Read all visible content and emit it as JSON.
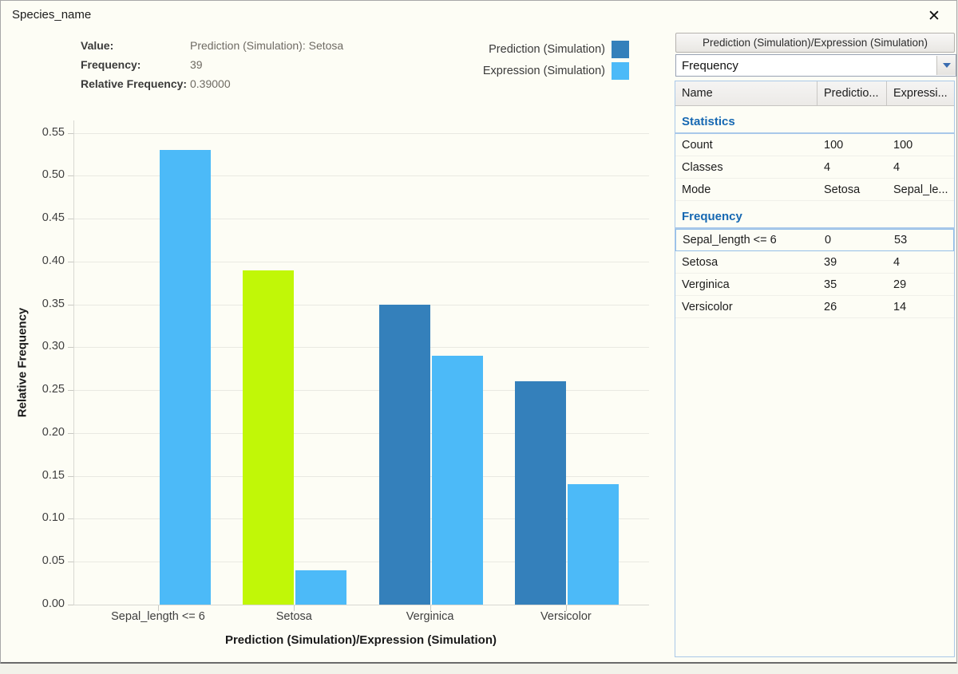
{
  "window": {
    "title": "Species_name",
    "close_glyph": "✕"
  },
  "info": {
    "rows": [
      {
        "label": "Value:",
        "value": "Prediction (Simulation): Setosa"
      },
      {
        "label": "Frequency:",
        "value": "39"
      },
      {
        "label": "Relative Frequency:",
        "value": "0.39000"
      }
    ]
  },
  "legend": {
    "items": [
      {
        "label": "Prediction (Simulation)",
        "color": "#3480BB"
      },
      {
        "label": "Expression (Simulation)",
        "color": "#4CBAF8"
      }
    ]
  },
  "chart_data": {
    "type": "bar",
    "categories": [
      "Sepal_length <= 6",
      "Setosa",
      "Verginica",
      "Versicolor"
    ],
    "series": [
      {
        "name": "Prediction (Simulation)",
        "color": "#3480BB",
        "values": [
          0,
          0.39,
          0.35,
          0.26
        ]
      },
      {
        "name": "Expression (Simulation)",
        "color": "#4CBAF8",
        "values": [
          0.53,
          0.04,
          0.29,
          0.14
        ]
      }
    ],
    "highlight": {
      "series": 0,
      "category_index": 1,
      "color": "#C1F707"
    },
    "xlabel": "Prediction (Simulation)/Expression (Simulation)",
    "ylabel": "Relative Frequency",
    "ylim": [
      0,
      0.55
    ],
    "ytick_step": 0.05,
    "grid": true,
    "legend_position": "top-right"
  },
  "panel": {
    "header_button": "Prediction (Simulation)/Expression (Simulation)",
    "dropdown_value": "Frequency",
    "table": {
      "columns": [
        "Name",
        "Predictio...",
        "Expressi..."
      ],
      "sections": [
        {
          "title": "Statistics",
          "rows": [
            [
              "Count",
              "100",
              "100"
            ],
            [
              "Classes",
              "4",
              "4"
            ],
            [
              "Mode",
              "Setosa",
              "Sepal_le..."
            ]
          ]
        },
        {
          "title": "Frequency",
          "selected_row": 0,
          "rows": [
            [
              "Sepal_length <= 6",
              "0",
              "53"
            ],
            [
              "Setosa",
              "39",
              "4"
            ],
            [
              "Verginica",
              "35",
              "29"
            ],
            [
              "Versicolor",
              "26",
              "14"
            ]
          ]
        }
      ]
    }
  }
}
